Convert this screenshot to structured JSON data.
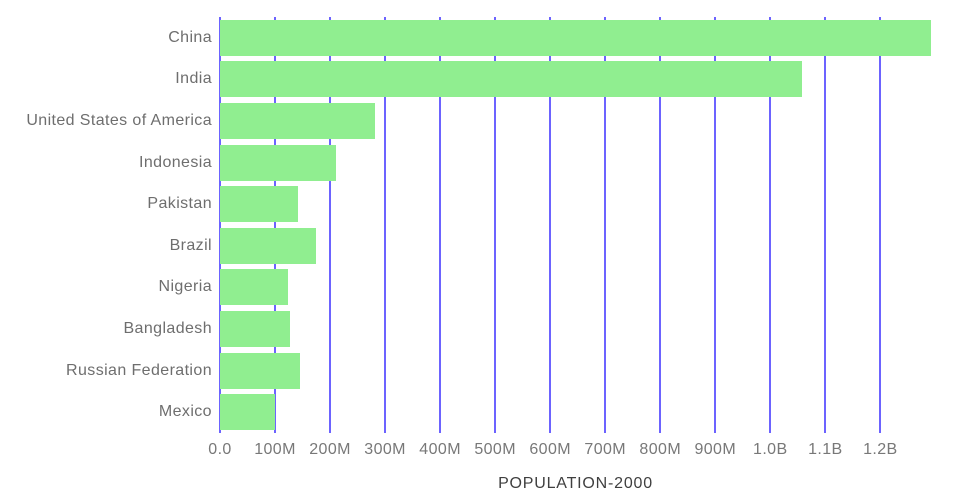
{
  "chart_data": {
    "type": "bar",
    "orientation": "horizontal",
    "title": "",
    "xlabel": "POPULATION-2000",
    "ylabel": "",
    "legend": "none",
    "grid": "vertical-gridlines",
    "categories": [
      "China",
      "India",
      "United States of America",
      "Indonesia",
      "Pakistan",
      "Brazil",
      "Nigeria",
      "Bangladesh",
      "Russian Federation",
      "Mexico"
    ],
    "values": [
      1292000000,
      1057000000,
      282000000,
      211000000,
      141000000,
      175000000,
      123000000,
      127000000,
      146000000,
      100000000
    ],
    "x_ticks": {
      "labels": [
        "0.0",
        "100M",
        "200M",
        "300M",
        "400M",
        "500M",
        "600M",
        "700M",
        "800M",
        "900M",
        "1.0B",
        "1.1B",
        "1.2B"
      ],
      "values": [
        0,
        100000000,
        200000000,
        300000000,
        400000000,
        500000000,
        600000000,
        700000000,
        800000000,
        900000000,
        1000000000,
        1100000000,
        1200000000
      ]
    },
    "xlim": [
      0,
      1292000000
    ],
    "colors": {
      "bar": "#90ee90",
      "gridline": "#6c63ff",
      "tick_text": "#787878",
      "category_text": "#6e6e6e",
      "axis_label_text": "#3f3f3f",
      "background": "#ffffff"
    }
  }
}
